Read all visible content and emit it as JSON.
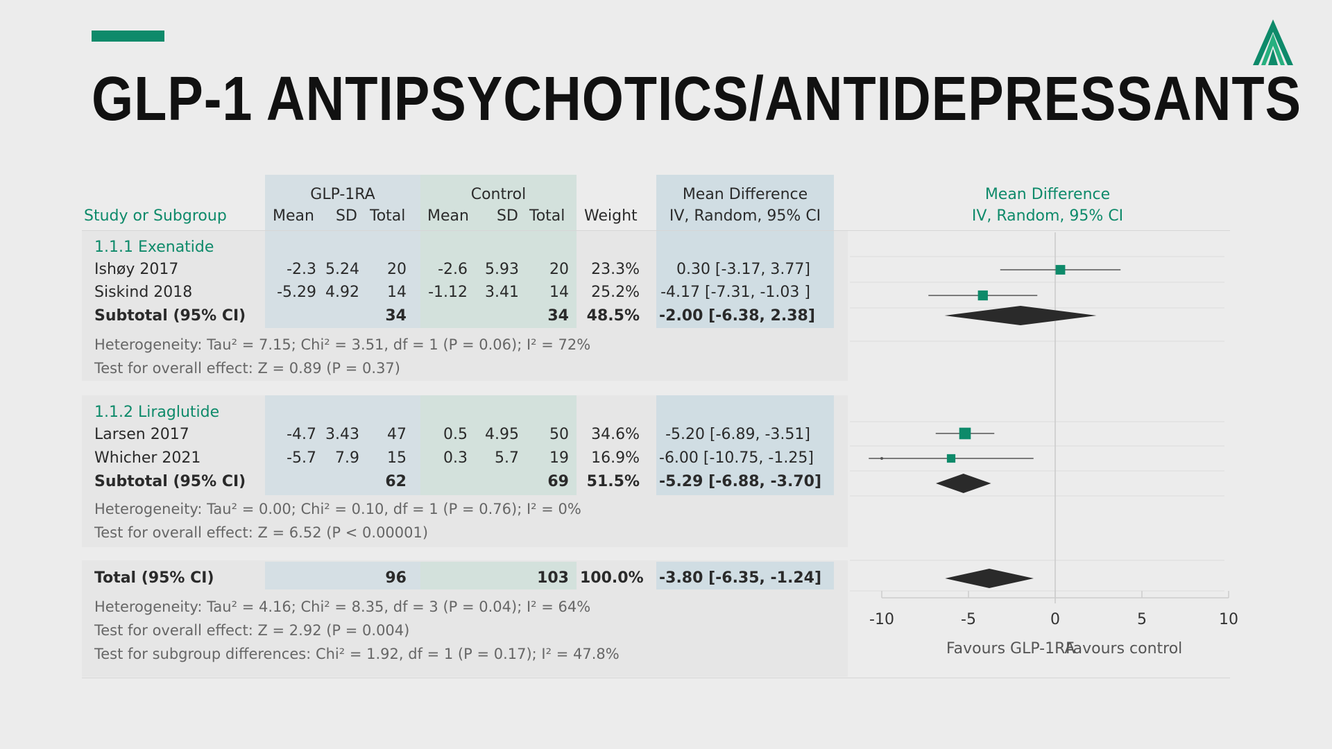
{
  "title": "GLP-1 ANTIPSYCHOTICS/ANTIDEPRESSANTS",
  "colors": {
    "accent": "#0e8a6a",
    "marker": "#0e8a6a",
    "diamond": "#2a2a2a",
    "ci_line": "#555555"
  },
  "icons": {
    "logo": "green-chevron-logo-icon"
  },
  "table": {
    "headers": {
      "study": "Study or Subgroup",
      "glp1ra": "GLP-1RA",
      "control": "Control",
      "mean": "Mean",
      "sd": "SD",
      "total": "Total",
      "weight": "Weight",
      "md": "Mean Difference",
      "md_method": "IV, Random, 95% CI"
    },
    "groups": [
      {
        "label": "1.1.1 Exenatide",
        "studies": [
          {
            "name": "Ishøy 2017",
            "g_mean": "-2.3",
            "g_sd": "5.24",
            "g_total": "20",
            "c_mean": "-2.6",
            "c_sd": "5.93",
            "c_total": "20",
            "weight": "23.3%",
            "md": "0.30 [-3.17, 3.77]"
          },
          {
            "name": "Siskind 2018",
            "g_mean": "-5.29",
            "g_sd": "4.92",
            "g_total": "14",
            "c_mean": "-1.12",
            "c_sd": "3.41",
            "c_total": "14",
            "weight": "25.2%",
            "md": "-4.17 [-7.31, -1.03 ]"
          }
        ],
        "subtotal": {
          "label": "Subtotal (95% CI)",
          "g_total": "34",
          "c_total": "34",
          "weight": "48.5%",
          "md": "-2.00 [-6.38, 2.38]"
        },
        "heterogeneity": "Heterogeneity: Tau² = 7.15; Chi² = 3.51, df = 1 (P = 0.06); I² = 72%",
        "overall": "Test for overall effect: Z = 0.89 (P = 0.37)"
      },
      {
        "label": "1.1.2 Liraglutide",
        "studies": [
          {
            "name": "Larsen 2017",
            "g_mean": "-4.7",
            "g_sd": "3.43",
            "g_total": "47",
            "c_mean": "0.5",
            "c_sd": "4.95",
            "c_total": "50",
            "weight": "34.6%",
            "md": "-5.20 [-6.89, -3.51]"
          },
          {
            "name": "Whicher 2021",
            "g_mean": "-5.7",
            "g_sd": "7.9",
            "g_total": "15",
            "c_mean": "0.3",
            "c_sd": "5.7",
            "c_total": "19",
            "weight": "16.9%",
            "md": "-6.00 [-10.75, -1.25]"
          }
        ],
        "subtotal": {
          "label": "Subtotal (95% CI)",
          "g_total": "62",
          "c_total": "69",
          "weight": "51.5%",
          "md": "-5.29 [-6.88, -3.70]"
        },
        "heterogeneity": "Heterogeneity: Tau² = 0.00; Chi² = 0.10, df = 1 (P = 0.76); I² = 0%",
        "overall": "Test for overall effect: Z = 6.52 (P < 0.00001)"
      }
    ],
    "total": {
      "label": "Total (95% CI)",
      "g_total": "96",
      "c_total": "103",
      "weight": "100.0%",
      "md": "-3.80 [-6.35, -1.24]",
      "heterogeneity": "Heterogeneity: Tau² = 4.16; Chi² = 8.35, df = 3 (P = 0.04); I² = 64%",
      "overall": "Test for overall effect: Z = 2.92 (P = 0.004)",
      "subgroup": "Test for subgroup differences: Chi² = 1.92, df = 1 (P = 0.17); I² = 47.8%"
    }
  },
  "plot": {
    "header": "Mean Difference",
    "header_method": "IV, Random, 95% CI",
    "ticks": [
      "-10",
      "-5",
      "0",
      "5",
      "10"
    ],
    "favours_left": "Favours GLP-1RA",
    "favours_right": "Favours control"
  },
  "chart_data": {
    "type": "scatter",
    "xlim": [
      -10,
      10
    ],
    "reference_line": 0,
    "points": [
      {
        "label": "Ishøy 2017",
        "est": 0.3,
        "lo": -3.17,
        "hi": 3.77,
        "weight": 23.3,
        "kind": "study"
      },
      {
        "label": "Siskind 2018",
        "est": -4.17,
        "lo": -7.31,
        "hi": -1.03,
        "weight": 25.2,
        "kind": "study"
      },
      {
        "label": "Subtotal (95% CI)",
        "est": -2.0,
        "lo": -6.38,
        "hi": 2.38,
        "weight": 48.5,
        "kind": "diamond"
      },
      {
        "label": "Larsen 2017",
        "est": -5.2,
        "lo": -6.89,
        "hi": -3.51,
        "weight": 34.6,
        "kind": "study"
      },
      {
        "label": "Whicher 2021",
        "est": -6.0,
        "lo": -10.75,
        "hi": -1.25,
        "weight": 16.9,
        "kind": "study"
      },
      {
        "label": "Subtotal (95% CI)",
        "est": -5.29,
        "lo": -6.88,
        "hi": -3.7,
        "weight": 51.5,
        "kind": "diamond"
      },
      {
        "label": "Total (95% CI)",
        "est": -3.8,
        "lo": -6.35,
        "hi": -1.24,
        "weight": 100.0,
        "kind": "diamond"
      }
    ]
  }
}
